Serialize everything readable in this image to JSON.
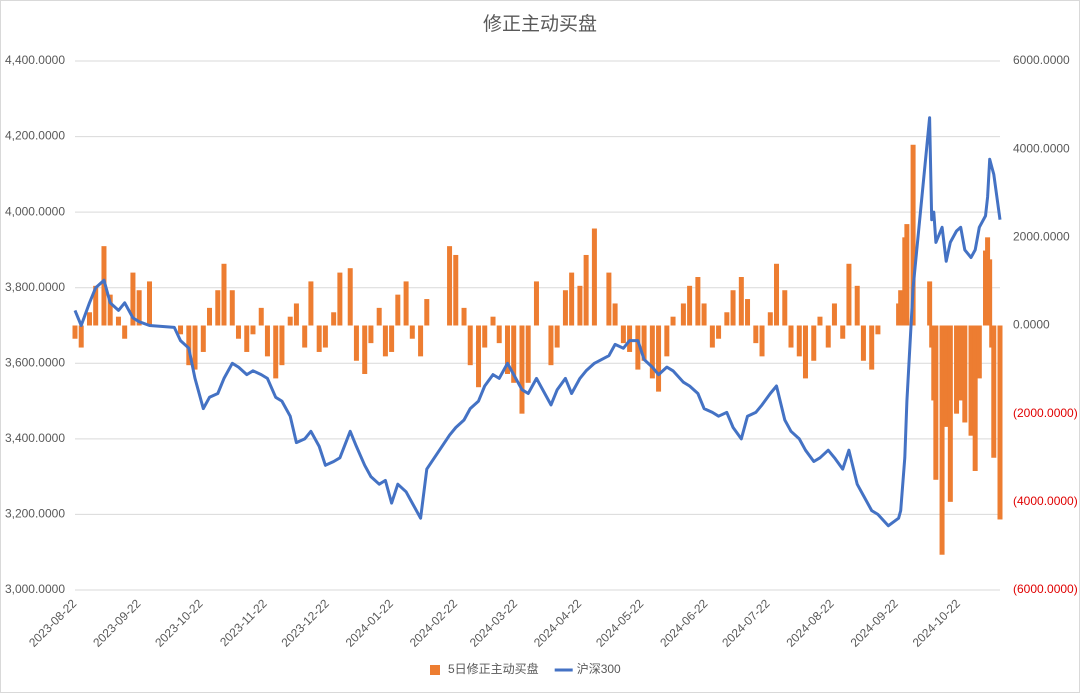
{
  "chart_data": {
    "type": "combo",
    "title": "修正主动买盘",
    "x": [
      "2023-08-22",
      "2023-08-25",
      "2023-08-29",
      "2023-09-01",
      "2023-09-05",
      "2023-09-08",
      "2023-09-12",
      "2023-09-15",
      "2023-09-19",
      "2023-09-22",
      "2023-09-27",
      "2023-10-09",
      "2023-10-12",
      "2023-10-16",
      "2023-10-19",
      "2023-10-23",
      "2023-10-26",
      "2023-10-30",
      "2023-11-02",
      "2023-11-06",
      "2023-11-09",
      "2023-11-13",
      "2023-11-16",
      "2023-11-20",
      "2023-11-23",
      "2023-11-27",
      "2023-11-30",
      "2023-12-04",
      "2023-12-07",
      "2023-12-11",
      "2023-12-14",
      "2023-12-18",
      "2023-12-21",
      "2023-12-25",
      "2023-12-28",
      "2024-01-02",
      "2024-01-05",
      "2024-01-09",
      "2024-01-12",
      "2024-01-16",
      "2024-01-19",
      "2024-01-22",
      "2024-01-25",
      "2024-01-29",
      "2024-02-01",
      "2024-02-05",
      "2024-02-08",
      "2024-02-19",
      "2024-02-22",
      "2024-02-26",
      "2024-02-29",
      "2024-03-04",
      "2024-03-07",
      "2024-03-11",
      "2024-03-14",
      "2024-03-18",
      "2024-03-21",
      "2024-03-25",
      "2024-03-28",
      "2024-04-01",
      "2024-04-08",
      "2024-04-11",
      "2024-04-15",
      "2024-04-18",
      "2024-04-22",
      "2024-04-25",
      "2024-04-29",
      "2024-05-06",
      "2024-05-09",
      "2024-05-13",
      "2024-05-16",
      "2024-05-20",
      "2024-05-23",
      "2024-05-27",
      "2024-05-30",
      "2024-06-03",
      "2024-06-06",
      "2024-06-11",
      "2024-06-14",
      "2024-06-18",
      "2024-06-21",
      "2024-06-25",
      "2024-06-28",
      "2024-07-02",
      "2024-07-05",
      "2024-07-09",
      "2024-07-12",
      "2024-07-16",
      "2024-07-19",
      "2024-07-23",
      "2024-07-26",
      "2024-07-30",
      "2024-08-02",
      "2024-08-06",
      "2024-08-09",
      "2024-08-13",
      "2024-08-16",
      "2024-08-20",
      "2024-08-23",
      "2024-08-27",
      "2024-08-30",
      "2024-09-03",
      "2024-09-06",
      "2024-09-10",
      "2024-09-13",
      "2024-09-18",
      "2024-09-23",
      "2024-09-24",
      "2024-09-26",
      "2024-09-27",
      "2024-09-30",
      "2024-10-08",
      "2024-10-09",
      "2024-10-10",
      "2024-10-11",
      "2024-10-14",
      "2024-10-16",
      "2024-10-18",
      "2024-10-21",
      "2024-10-23",
      "2024-10-25",
      "2024-10-28",
      "2024-10-30",
      "2024-11-01",
      "2024-11-04",
      "2024-11-05",
      "2024-11-06",
      "2024-11-07",
      "2024-11-08",
      "2024-11-11"
    ],
    "series": [
      {
        "name": "5日修正主动买盘",
        "type": "bar",
        "axis": "y2",
        "color": "#ed7d31",
        "values": [
          -300,
          -500,
          300,
          900,
          1800,
          700,
          200,
          -300,
          1200,
          800,
          1000,
          0,
          -200,
          -900,
          -1000,
          -600,
          400,
          800,
          1400,
          800,
          -300,
          -600,
          -200,
          400,
          -700,
          -1200,
          -900,
          200,
          500,
          -500,
          1000,
          -600,
          -500,
          300,
          1200,
          1300,
          -800,
          -1100,
          -400,
          400,
          -700,
          -600,
          700,
          1000,
          -300,
          -700,
          600,
          1800,
          1600,
          400,
          -900,
          -1400,
          -500,
          200,
          -400,
          -1100,
          -1300,
          -2000,
          -1300,
          1000,
          -900,
          -500,
          800,
          1200,
          900,
          1600,
          2200,
          1200,
          500,
          -400,
          -600,
          -1000,
          -800,
          -1200,
          -1500,
          -700,
          200,
          500,
          900,
          1100,
          500,
          -500,
          -300,
          300,
          800,
          1100,
          600,
          -400,
          -700,
          300,
          1400,
          800,
          -500,
          -700,
          -1200,
          -800,
          200,
          -500,
          500,
          -300,
          1400,
          900,
          -800,
          -1000,
          -200,
          0,
          500,
          800,
          2000,
          2300,
          4100,
          1000,
          -500,
          -1700,
          -3500,
          -5200,
          -2300,
          -4000,
          -2000,
          -1700,
          -2200,
          -2500,
          -3300,
          -1200,
          1700,
          2000,
          1500,
          -500,
          -3000,
          -4400
        ]
      },
      {
        "name": "沪深300",
        "type": "line",
        "color": "#4472c4",
        "values": [
          3740,
          3700,
          3760,
          3800,
          3820,
          3760,
          3740,
          3760,
          3720,
          3710,
          3700,
          3695,
          3660,
          3640,
          3560,
          3480,
          3510,
          3520,
          3560,
          3600,
          3590,
          3570,
          3580,
          3570,
          3560,
          3510,
          3500,
          3460,
          3390,
          3400,
          3420,
          3380,
          3330,
          3340,
          3350,
          3420,
          3380,
          3330,
          3300,
          3280,
          3290,
          3230,
          3280,
          3260,
          3230,
          3190,
          3320,
          3410,
          3430,
          3450,
          3480,
          3500,
          3540,
          3570,
          3560,
          3600,
          3570,
          3530,
          3520,
          3560,
          3490,
          3530,
          3560,
          3520,
          3560,
          3580,
          3600,
          3620,
          3650,
          3640,
          3660,
          3660,
          3610,
          3590,
          3570,
          3590,
          3580,
          3550,
          3540,
          3520,
          3480,
          3470,
          3460,
          3470,
          3430,
          3400,
          3460,
          3470,
          3490,
          3520,
          3540,
          3450,
          3420,
          3400,
          3370,
          3340,
          3350,
          3370,
          3350,
          3320,
          3370,
          3280,
          3250,
          3210,
          3200,
          3170,
          3190,
          3210,
          3350,
          3500,
          3800,
          4250,
          3980,
          4000,
          3920,
          3960,
          3870,
          3920,
          3950,
          3960,
          3900,
          3880,
          3900,
          3960,
          3990,
          4040,
          4140,
          4120,
          4100,
          3980
        ]
      }
    ],
    "xticks": [
      "2023-08-22",
      "2023-09-22",
      "2023-10-22",
      "2023-11-22",
      "2023-12-22",
      "2024-01-22",
      "2024-02-22",
      "2024-03-22",
      "2024-04-22",
      "2024-05-22",
      "2024-06-22",
      "2024-07-22",
      "2024-08-22",
      "2024-09-22",
      "2024-10-22"
    ],
    "ylim": [
      3000,
      4400
    ],
    "yticks": [
      {
        "value": 3000,
        "label": "3,000.0000"
      },
      {
        "value": 3200,
        "label": "3,200.0000"
      },
      {
        "value": 3400,
        "label": "3,400.0000"
      },
      {
        "value": 3600,
        "label": "3,600.0000"
      },
      {
        "value": 3800,
        "label": "3,800.0000"
      },
      {
        "value": 4000,
        "label": "4,000.0000"
      },
      {
        "value": 4200,
        "label": "4,200.0000"
      },
      {
        "value": 4400,
        "label": "4,400.0000"
      }
    ],
    "y2lim": [
      -6000,
      6000
    ],
    "y2ticks": [
      {
        "value": -6000,
        "label": "(6000.0000)"
      },
      {
        "value": -4000,
        "label": "(4000.0000)"
      },
      {
        "value": -2000,
        "label": "(2000.0000)"
      },
      {
        "value": 0,
        "label": "0.0000"
      },
      {
        "value": 2000,
        "label": "2000.0000"
      },
      {
        "value": 4000,
        "label": "4000.0000"
      },
      {
        "value": 6000,
        "label": "6000.0000"
      }
    ],
    "y2tick_negative_color": "#e00000",
    "grid": true,
    "legend": "bottom"
  }
}
